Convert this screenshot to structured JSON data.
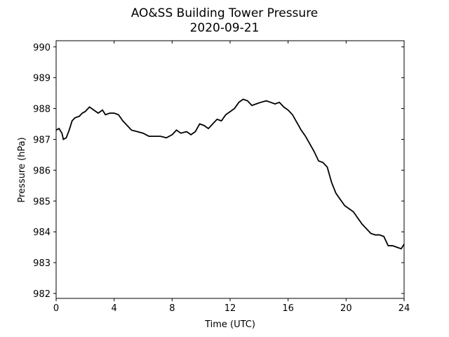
{
  "chart_data": {
    "type": "line",
    "title": "AO&SS Building Tower Pressure",
    "subtitle": "2020-09-21",
    "x_label": "Time (UTC)",
    "y_label": "Pressure (hPa)",
    "xlim": [
      0,
      24
    ],
    "xticks": [
      0,
      4,
      8,
      12,
      16,
      20,
      24
    ],
    "ylim": [
      981.84,
      990.2
    ],
    "yticks": [
      982,
      983,
      984,
      985,
      986,
      987,
      988,
      989,
      990
    ],
    "series": [
      {
        "name": "Pressure",
        "color": "#000000",
        "x": [
          0,
          0.2,
          0.4,
          0.5,
          0.7,
          0.9,
          1.1,
          1.3,
          1.6,
          1.8,
          2.0,
          2.3,
          2.6,
          2.9,
          3.2,
          3.4,
          3.7,
          4.0,
          4.3,
          4.6,
          4.9,
          5.2,
          5.6,
          6.0,
          6.4,
          6.8,
          7.2,
          7.6,
          8.0,
          8.3,
          8.6,
          9.0,
          9.3,
          9.6,
          9.9,
          10.2,
          10.5,
          10.8,
          11.1,
          11.4,
          11.7,
          12.0,
          12.3,
          12.6,
          12.9,
          13.2,
          13.5,
          13.8,
          14.1,
          14.5,
          14.8,
          15.1,
          15.4,
          15.7,
          16.0,
          16.3,
          16.6,
          16.9,
          17.2,
          17.5,
          17.8,
          18.1,
          18.4,
          18.7,
          19.0,
          19.3,
          19.6,
          19.9,
          20.2,
          20.5,
          20.8,
          21.1,
          21.4,
          21.7,
          22.0,
          22.3,
          22.6,
          22.9,
          23.2,
          23.5,
          23.8,
          24.0
        ],
        "values": [
          987.3,
          987.35,
          987.2,
          987.0,
          987.05,
          987.3,
          987.6,
          987.7,
          987.75,
          987.85,
          987.9,
          988.05,
          987.95,
          987.85,
          987.95,
          987.8,
          987.85,
          987.85,
          987.8,
          987.6,
          987.45,
          987.3,
          987.25,
          987.2,
          987.1,
          987.1,
          987.1,
          987.05,
          987.15,
          987.3,
          987.2,
          987.25,
          987.15,
          987.25,
          987.5,
          987.45,
          987.35,
          987.5,
          987.65,
          987.6,
          987.8,
          987.9,
          988.0,
          988.2,
          988.3,
          988.25,
          988.1,
          988.15,
          988.2,
          988.25,
          988.2,
          988.15,
          988.2,
          988.05,
          987.95,
          987.8,
          987.55,
          987.3,
          987.1,
          986.85,
          986.6,
          986.3,
          986.25,
          986.1,
          985.6,
          985.25,
          985.05,
          984.85,
          984.75,
          984.65,
          984.45,
          984.25,
          984.1,
          983.95,
          983.9,
          983.9,
          983.85,
          983.55,
          983.55,
          983.5,
          983.45,
          983.6
        ]
      }
    ]
  }
}
